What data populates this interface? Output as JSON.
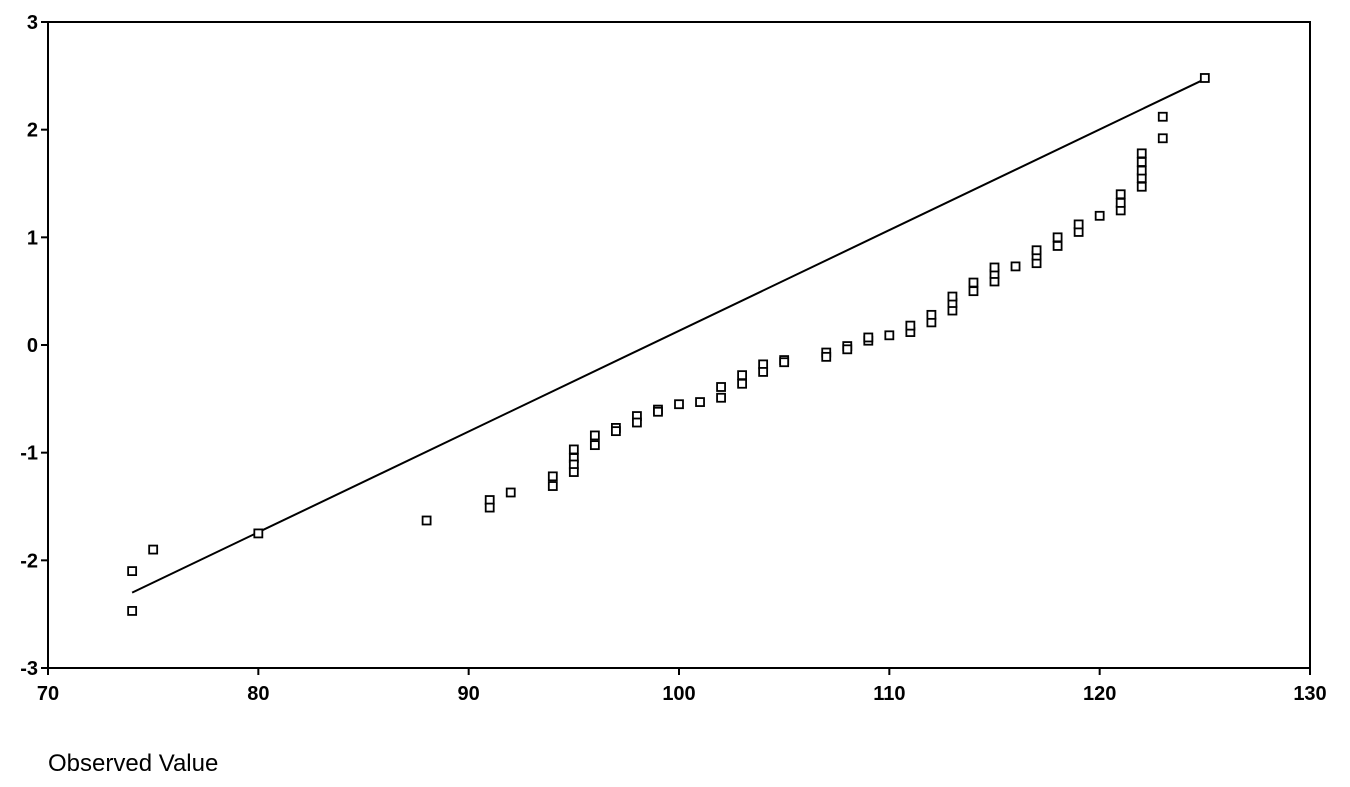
{
  "chart_data": {
    "type": "scatter",
    "title": "",
    "xlabel": "Observed Value",
    "ylabel": "",
    "xlim": [
      70,
      130
    ],
    "ylim": [
      -3,
      3
    ],
    "x_ticks": [
      "70",
      "80",
      "90",
      "100",
      "110",
      "120",
      "130"
    ],
    "y_ticks": [
      "3",
      "2",
      "1",
      "0",
      "-1",
      "-2",
      "-3"
    ],
    "grid": false,
    "reference_line": {
      "x": [
        74,
        125
      ],
      "y": [
        -2.3,
        2.47
      ]
    },
    "points": [
      [
        74,
        -2.1
      ],
      [
        74,
        -2.47
      ],
      [
        75,
        -1.9
      ],
      [
        80,
        -1.75
      ],
      [
        88,
        -1.63
      ],
      [
        91,
        -1.44
      ],
      [
        91,
        -1.51
      ],
      [
        92,
        -1.37
      ],
      [
        94,
        -1.22
      ],
      [
        94,
        -1.31
      ],
      [
        95,
        -0.97
      ],
      [
        95,
        -1.05
      ],
      [
        95,
        -1.11
      ],
      [
        95,
        -1.18
      ],
      [
        96,
        -0.84
      ],
      [
        96,
        -0.93
      ],
      [
        97,
        -0.77
      ],
      [
        97,
        -0.8
      ],
      [
        98,
        -0.66
      ],
      [
        98,
        -0.72
      ],
      [
        99,
        -0.6
      ],
      [
        99,
        -0.62
      ],
      [
        100,
        -0.55
      ],
      [
        101,
        -0.53
      ],
      [
        102,
        -0.39
      ],
      [
        102,
        -0.49
      ],
      [
        103,
        -0.28
      ],
      [
        103,
        -0.36
      ],
      [
        104,
        -0.18
      ],
      [
        104,
        -0.25
      ],
      [
        105,
        -0.14
      ],
      [
        105,
        -0.16
      ],
      [
        107,
        -0.07
      ],
      [
        107,
        -0.11
      ],
      [
        108,
        -0.01
      ],
      [
        108,
        -0.04
      ],
      [
        109,
        0.04
      ],
      [
        109,
        0.07
      ],
      [
        110,
        0.09
      ],
      [
        111,
        0.12
      ],
      [
        111,
        0.18
      ],
      [
        112,
        0.21
      ],
      [
        112,
        0.28
      ],
      [
        113,
        0.32
      ],
      [
        113,
        0.39
      ],
      [
        113,
        0.45
      ],
      [
        114,
        0.5
      ],
      [
        114,
        0.58
      ],
      [
        115,
        0.59
      ],
      [
        115,
        0.66
      ],
      [
        115,
        0.72
      ],
      [
        116,
        0.73
      ],
      [
        117,
        0.76
      ],
      [
        117,
        0.83
      ],
      [
        117,
        0.88
      ],
      [
        118,
        0.92
      ],
      [
        118,
        1.0
      ],
      [
        119,
        1.05
      ],
      [
        119,
        1.12
      ],
      [
        120,
        1.2
      ],
      [
        121,
        1.25
      ],
      [
        121,
        1.32
      ],
      [
        121,
        1.4
      ],
      [
        122,
        1.47
      ],
      [
        122,
        1.55
      ],
      [
        122,
        1.62
      ],
      [
        122,
        1.7
      ],
      [
        122,
        1.78
      ],
      [
        123,
        1.92
      ],
      [
        123,
        2.12
      ],
      [
        125,
        2.48
      ]
    ]
  }
}
